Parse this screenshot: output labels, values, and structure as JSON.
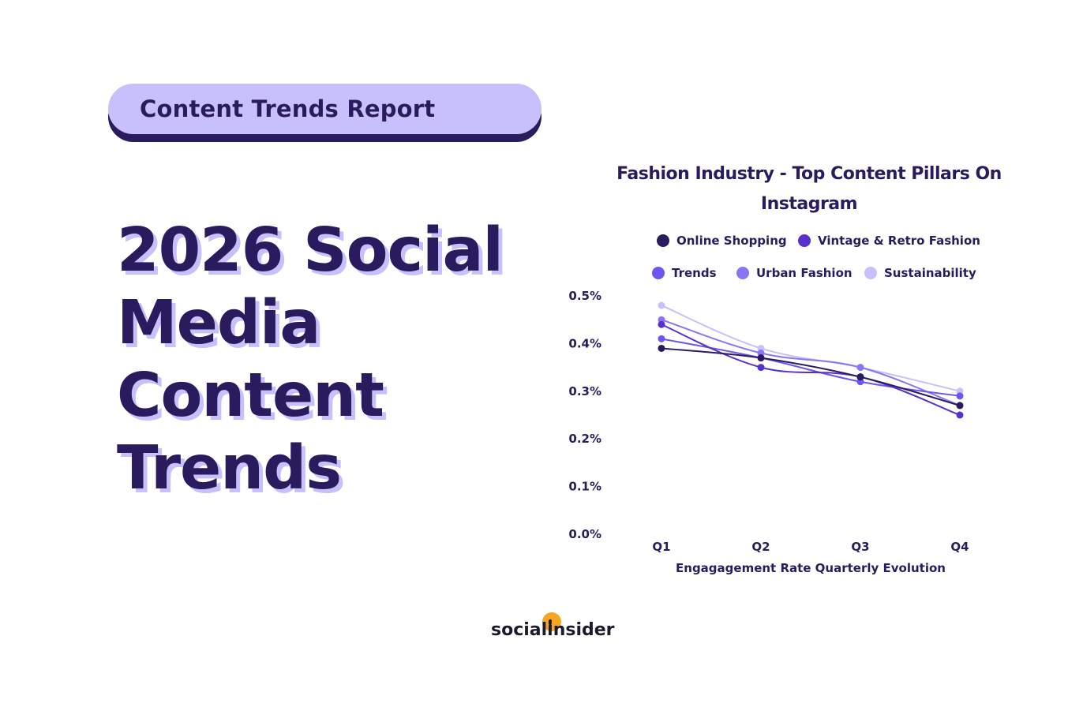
{
  "badge": {
    "label": "Content Trends Report"
  },
  "headline": {
    "lines": [
      "2026 Social",
      "Media",
      "Content",
      "Trends"
    ]
  },
  "brand": {
    "name": "socialinsider",
    "accent": "#f6a623"
  },
  "colors": {
    "dark": "#2a1b5e",
    "lavender": "#c8c0fc"
  },
  "chart_data": {
    "type": "line",
    "title": "Fashion Industry - Top Content Pillars On Instagram",
    "title_lines": [
      "Fashion Industry - Top Content Pillars On",
      "Instagram"
    ],
    "xlabel": "Engagagement Rate Quarterly Evolution",
    "ylabel": "",
    "categories": [
      "Q1",
      "Q2",
      "Q3",
      "Q4"
    ],
    "y_ticks": [
      "0.0%",
      "0.1%",
      "0.2%",
      "0.3%",
      "0.4%",
      "0.5%"
    ],
    "ylim": [
      0,
      0.5
    ],
    "grid": false,
    "legend_position": "top",
    "series": [
      {
        "name": "Online Shopping",
        "color": "#2a1b5e",
        "values": [
          0.39,
          0.37,
          0.33,
          0.27
        ]
      },
      {
        "name": "Vintage & Retro Fashion",
        "color": "#5a2fd0",
        "values": [
          0.44,
          0.35,
          0.33,
          0.25
        ]
      },
      {
        "name": "Trends",
        "color": "#6c55f0",
        "values": [
          0.41,
          0.37,
          0.32,
          0.29
        ]
      },
      {
        "name": "Urban Fashion",
        "color": "#8a76f5",
        "values": [
          0.45,
          0.38,
          0.35,
          0.27
        ]
      },
      {
        "name": "Sustainability",
        "color": "#c9c0fb",
        "values": [
          0.48,
          0.39,
          0.35,
          0.3
        ]
      }
    ]
  }
}
